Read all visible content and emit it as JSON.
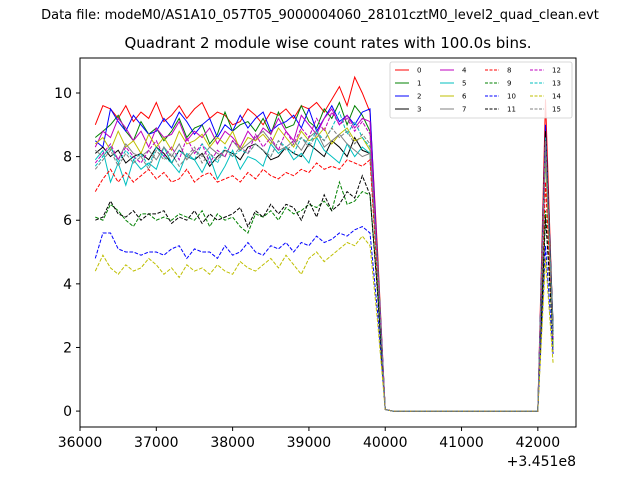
{
  "figure": {
    "suptitle": "Data file: modeM0/AS1A10_057T05_9000004060_28101cztM0_level2_quad_clean.evt"
  },
  "chart_data": {
    "type": "line",
    "title": "Quadrant 2 module wise count rates with 100.0s bins.",
    "xlabel": "",
    "ylabel": "",
    "x_offset_label": "+3.451e8",
    "xlim": [
      36000,
      42500
    ],
    "ylim": [
      -0.5,
      11.1
    ],
    "x_ticks": [
      36000,
      37000,
      38000,
      39000,
      40000,
      41000,
      42000
    ],
    "y_ticks": [
      0,
      2,
      4,
      6,
      8,
      10
    ],
    "grid": false,
    "legend_position": "top-right",
    "legend_columns": 4,
    "x": [
      36200,
      36300,
      36400,
      36500,
      36600,
      36700,
      36800,
      36900,
      37000,
      37100,
      37200,
      37300,
      37400,
      37500,
      37600,
      37700,
      37800,
      37900,
      38000,
      38100,
      38200,
      38300,
      38400,
      38500,
      38600,
      38700,
      38800,
      38900,
      39000,
      39100,
      39200,
      39300,
      39400,
      39500,
      39600,
      39700,
      39800,
      39900,
      40000,
      40100,
      40200,
      40300,
      40400,
      40500,
      40600,
      40700,
      40800,
      40900,
      41000,
      41100,
      41200,
      41300,
      41400,
      41500,
      41600,
      41700,
      41800,
      41900,
      42000,
      42100,
      42200
    ],
    "series": [
      {
        "name": "0",
        "color": "#ff0000",
        "dash": "solid",
        "values": [
          9.0,
          9.6,
          9.5,
          9.2,
          9.6,
          9.1,
          9.4,
          9.2,
          9.7,
          9.1,
          9.3,
          9.6,
          9.2,
          9.5,
          9.7,
          9.2,
          9.4,
          9.3,
          9.0,
          9.1,
          9.5,
          9.3,
          9.0,
          9.4,
          9.3,
          9.5,
          9.2,
          9.6,
          9.5,
          9.7,
          9.4,
          9.8,
          10.2,
          9.6,
          10.5,
          10.0,
          9.4,
          5.0,
          0.05,
          0,
          0,
          0,
          0,
          0,
          0,
          0,
          0,
          0,
          0,
          0,
          0,
          0,
          0,
          0,
          0,
          0,
          0,
          0,
          0,
          9.8,
          2.5
        ]
      },
      {
        "name": "1",
        "color": "#008000",
        "dash": "solid",
        "values": [
          8.6,
          8.8,
          9.0,
          9.3,
          8.8,
          8.5,
          9.1,
          8.7,
          8.9,
          8.5,
          8.8,
          9.2,
          8.6,
          8.9,
          9.0,
          8.4,
          8.7,
          9.4,
          8.8,
          9.0,
          9.1,
          8.8,
          9.2,
          8.7,
          9.4,
          8.9,
          9.0,
          9.6,
          9.1,
          8.9,
          9.5,
          9.2,
          9.7,
          9.0,
          9.6,
          9.3,
          8.8,
          4.8,
          0.05,
          0,
          0,
          0,
          0,
          0,
          0,
          0,
          0,
          0,
          0,
          0,
          0,
          0,
          0,
          0,
          0,
          0,
          0,
          0,
          0,
          8.5,
          2.0
        ]
      },
      {
        "name": "2",
        "color": "#0000ff",
        "dash": "solid",
        "values": [
          8.5,
          8.3,
          9.5,
          9.1,
          8.8,
          9.3,
          9.0,
          8.7,
          8.8,
          9.2,
          8.9,
          9.4,
          9.1,
          8.7,
          9.0,
          9.2,
          8.6,
          9.0,
          8.8,
          9.3,
          8.9,
          9.2,
          9.4,
          8.8,
          9.0,
          9.1,
          9.3,
          8.9,
          9.5,
          8.8,
          9.2,
          9.6,
          9.1,
          9.3,
          9.0,
          9.4,
          9.5,
          4.7,
          0.05,
          0,
          0,
          0,
          0,
          0,
          0,
          0,
          0,
          0,
          0,
          0,
          0,
          0,
          0,
          0,
          0,
          0,
          0,
          0,
          0,
          9.0,
          2.6
        ]
      },
      {
        "name": "3",
        "color": "#000000",
        "dash": "solid",
        "values": [
          8.1,
          8.3,
          8.0,
          8.2,
          7.8,
          8.0,
          8.1,
          7.9,
          8.3,
          8.1,
          7.8,
          8.2,
          8.0,
          7.9,
          8.1,
          7.7,
          8.0,
          8.2,
          8.1,
          7.9,
          8.3,
          8.4,
          8.2,
          7.9,
          8.0,
          8.3,
          8.1,
          8.0,
          8.4,
          8.2,
          8.0,
          8.5,
          8.3,
          8.0,
          8.6,
          8.2,
          8.1,
          4.5,
          0.05,
          0,
          0,
          0,
          0,
          0,
          0,
          0,
          0,
          0,
          0,
          0,
          0,
          0,
          0,
          0,
          0,
          0,
          0,
          0,
          0,
          8.8,
          2.7
        ]
      },
      {
        "name": "4",
        "color": "#bf00bf",
        "dash": "solid",
        "values": [
          8.3,
          8.8,
          8.6,
          9.2,
          8.9,
          8.5,
          8.8,
          8.3,
          8.9,
          8.6,
          8.7,
          9.1,
          8.5,
          8.8,
          8.6,
          8.9,
          8.4,
          8.8,
          8.6,
          8.3,
          8.8,
          8.5,
          8.9,
          8.7,
          9.2,
          8.8,
          8.5,
          9.3,
          9.0,
          8.7,
          9.2,
          9.5,
          9.0,
          9.3,
          8.9,
          9.2,
          9.1,
          4.6,
          0.05,
          0,
          0,
          0,
          0,
          0,
          0,
          0,
          0,
          0,
          0,
          0,
          0,
          0,
          0,
          0,
          0,
          0,
          0,
          0,
          0,
          8.2,
          2.4
        ]
      },
      {
        "name": "5",
        "color": "#00bfbf",
        "dash": "solid",
        "values": [
          7.9,
          8.2,
          7.2,
          7.8,
          7.1,
          7.9,
          7.6,
          7.8,
          7.6,
          8.3,
          7.8,
          7.5,
          8.1,
          7.9,
          7.5,
          8.0,
          7.3,
          7.7,
          8.2,
          7.6,
          8.0,
          7.9,
          7.7,
          8.4,
          8.1,
          8.3,
          7.9,
          8.1,
          7.8,
          8.6,
          8.2,
          8.0,
          7.8,
          8.4,
          8.0,
          8.3,
          8.1,
          4.4,
          0.05,
          0,
          0,
          0,
          0,
          0,
          0,
          0,
          0,
          0,
          0,
          0,
          0,
          0,
          0,
          0,
          0,
          0,
          0,
          0,
          0,
          8.0,
          2.5
        ]
      },
      {
        "name": "6",
        "color": "#bfbf00",
        "dash": "solid",
        "values": [
          8.4,
          8.6,
          8.2,
          8.8,
          8.3,
          8.5,
          8.1,
          8.7,
          8.3,
          8.6,
          8.2,
          8.8,
          8.4,
          8.5,
          8.7,
          8.3,
          8.6,
          8.4,
          8.8,
          8.2,
          8.6,
          8.5,
          8.7,
          8.4,
          8.9,
          8.6,
          8.3,
          8.8,
          8.5,
          8.6,
          8.9,
          8.4,
          8.7,
          8.9,
          8.5,
          8.6,
          8.2,
          4.3,
          0.05,
          0,
          0,
          0,
          0,
          0,
          0,
          0,
          0,
          0,
          0,
          0,
          0,
          0,
          0,
          0,
          0,
          0,
          0,
          0,
          0,
          8.1,
          1.8
        ]
      },
      {
        "name": "7",
        "color": "#808080",
        "dash": "solid",
        "values": [
          8.2,
          8.0,
          8.3,
          7.9,
          8.4,
          8.1,
          8.0,
          8.2,
          7.9,
          8.3,
          8.0,
          8.4,
          7.9,
          8.2,
          8.0,
          8.3,
          8.1,
          8.0,
          8.5,
          8.2,
          8.4,
          8.6,
          8.8,
          8.5,
          8.2,
          8.3,
          8.5,
          8.2,
          8.6,
          8.8,
          8.3,
          8.5,
          8.7,
          8.4,
          8.2,
          8.0,
          8.1,
          4.4,
          0.05,
          0,
          0,
          0,
          0,
          0,
          0,
          0,
          0,
          0,
          0,
          0,
          0,
          0,
          0,
          0,
          0,
          0,
          0,
          0,
          0,
          8.3,
          2.6
        ]
      },
      {
        "name": "8",
        "color": "#ff0000",
        "dash": "dashed",
        "values": [
          6.9,
          7.3,
          7.6,
          7.2,
          7.5,
          7.2,
          7.4,
          7.6,
          7.3,
          7.5,
          7.2,
          7.3,
          7.6,
          7.2,
          7.4,
          7.5,
          7.2,
          7.3,
          7.4,
          7.2,
          7.5,
          7.3,
          7.6,
          7.4,
          7.3,
          7.5,
          7.4,
          7.6,
          7.5,
          7.8,
          7.6,
          7.7,
          7.6,
          7.9,
          7.8,
          7.7,
          7.9,
          4.1,
          0.05,
          0,
          0,
          0,
          0,
          0,
          0,
          0,
          0,
          0,
          0,
          0,
          0,
          0,
          0,
          0,
          0,
          0,
          0,
          0,
          0,
          7.2,
          2.2
        ]
      },
      {
        "name": "9",
        "color": "#008000",
        "dash": "dashed",
        "values": [
          6.1,
          6.0,
          6.5,
          6.3,
          6.0,
          5.8,
          6.2,
          6.2,
          6.0,
          6.1,
          6.0,
          6.2,
          6.1,
          6.0,
          6.3,
          5.8,
          6.2,
          6.0,
          6.1,
          5.8,
          5.6,
          6.2,
          6.1,
          6.3,
          6.0,
          6.4,
          6.2,
          6.3,
          6.5,
          6.4,
          6.6,
          6.3,
          7.2,
          6.5,
          6.6,
          6.9,
          6.8,
          3.8,
          0.05,
          0,
          0,
          0,
          0,
          0,
          0,
          0,
          0,
          0,
          0,
          0,
          0,
          0,
          0,
          0,
          0,
          0,
          0,
          0,
          0,
          6.3,
          2.2
        ]
      },
      {
        "name": "10",
        "color": "#0000ff",
        "dash": "dashed",
        "values": [
          4.8,
          5.6,
          5.6,
          5.1,
          5.0,
          5.0,
          4.9,
          5.0,
          5.0,
          4.9,
          5.1,
          5.2,
          4.8,
          5.1,
          5.0,
          5.0,
          4.8,
          5.2,
          4.9,
          5.0,
          5.3,
          5.0,
          4.9,
          5.2,
          5.1,
          5.3,
          5.0,
          5.3,
          5.2,
          5.5,
          5.3,
          5.4,
          5.6,
          5.5,
          5.7,
          5.8,
          5.6,
          3.1,
          0.05,
          0,
          0,
          0,
          0,
          0,
          0,
          0,
          0,
          0,
          0,
          0,
          0,
          0,
          0,
          0,
          0,
          0,
          0,
          0,
          0,
          5.2,
          1.8
        ]
      },
      {
        "name": "11",
        "color": "#000000",
        "dash": "dashed",
        "values": [
          6.0,
          6.1,
          6.6,
          6.2,
          6.1,
          6.3,
          6.0,
          6.2,
          6.2,
          6.3,
          5.9,
          6.1,
          6.0,
          6.3,
          5.9,
          6.2,
          6.0,
          6.1,
          6.2,
          6.4,
          5.8,
          6.3,
          6.1,
          6.5,
          6.2,
          6.5,
          6.4,
          6.0,
          6.6,
          6.1,
          6.8,
          6.3,
          6.5,
          6.9,
          6.7,
          7.4,
          6.8,
          3.7,
          0.05,
          0,
          0,
          0,
          0,
          0,
          0,
          0,
          0,
          0,
          0,
          0,
          0,
          0,
          0,
          0,
          0,
          0,
          0,
          0,
          0,
          6.1,
          2.4
        ]
      },
      {
        "name": "12",
        "color": "#bf00bf",
        "dash": "dashed",
        "values": [
          7.8,
          8.1,
          8.4,
          7.9,
          8.3,
          8.0,
          7.8,
          8.2,
          8.5,
          8.0,
          8.3,
          7.9,
          8.6,
          8.1,
          8.4,
          7.8,
          8.2,
          8.0,
          8.5,
          8.3,
          8.1,
          8.7,
          8.3,
          8.6,
          8.2,
          8.8,
          8.4,
          8.9,
          8.6,
          9.2,
          8.8,
          9.4,
          9.0,
          9.2,
          8.8,
          9.1,
          8.7,
          4.6,
          0.05,
          0,
          0,
          0,
          0,
          0,
          0,
          0,
          0,
          0,
          0,
          0,
          0,
          0,
          0,
          0,
          0,
          0,
          0,
          0,
          0,
          8.4,
          2.3
        ]
      },
      {
        "name": "13",
        "color": "#00bfbf",
        "dash": "dashed",
        "values": [
          7.7,
          8.0,
          8.3,
          7.8,
          8.2,
          7.9,
          8.1,
          7.7,
          8.3,
          8.0,
          7.8,
          8.2,
          8.0,
          7.9,
          8.4,
          8.1,
          7.8,
          8.3,
          8.0,
          8.2,
          8.1,
          8.4,
          8.2,
          8.0,
          8.5,
          8.3,
          8.1,
          8.6,
          8.4,
          8.8,
          8.5,
          8.9,
          9.4,
          8.7,
          9.1,
          8.6,
          8.3,
          4.5,
          0.05,
          0,
          0,
          0,
          0,
          0,
          0,
          0,
          0,
          0,
          0,
          0,
          0,
          0,
          0,
          0,
          0,
          0,
          0,
          0,
          0,
          8.6,
          2.4
        ]
      },
      {
        "name": "14",
        "color": "#bfbf00",
        "dash": "dashed",
        "values": [
          4.4,
          4.9,
          4.5,
          4.3,
          4.6,
          4.4,
          4.5,
          4.8,
          4.6,
          4.3,
          4.5,
          4.2,
          4.6,
          4.4,
          4.5,
          4.3,
          4.6,
          4.4,
          4.3,
          4.7,
          4.5,
          4.4,
          4.6,
          4.8,
          4.5,
          4.9,
          4.6,
          4.3,
          4.8,
          5.0,
          4.7,
          4.9,
          5.1,
          5.3,
          5.2,
          5.5,
          5.2,
          2.8,
          0.05,
          0,
          0,
          0,
          0,
          0,
          0,
          0,
          0,
          0,
          0,
          0,
          0,
          0,
          0,
          0,
          0,
          0,
          0,
          0,
          0,
          4.8,
          1.5
        ]
      },
      {
        "name": "15",
        "color": "#808080",
        "dash": "dashed",
        "values": [
          7.6,
          7.9,
          8.2,
          7.7,
          8.1,
          7.8,
          8.0,
          7.6,
          8.2,
          7.9,
          8.1,
          7.7,
          8.0,
          8.3,
          7.8,
          8.1,
          7.9,
          8.2,
          8.0,
          8.3,
          8.1,
          8.4,
          8.2,
          8.0,
          8.5,
          8.2,
          8.4,
          8.6,
          8.3,
          8.7,
          8.5,
          8.9,
          8.6,
          8.8,
          8.4,
          8.7,
          8.4,
          4.5,
          0.05,
          0,
          0,
          0,
          0,
          0,
          0,
          0,
          0,
          0,
          0,
          0,
          0,
          0,
          0,
          0,
          0,
          0,
          0,
          0,
          0,
          8.5,
          2.4
        ]
      }
    ]
  }
}
